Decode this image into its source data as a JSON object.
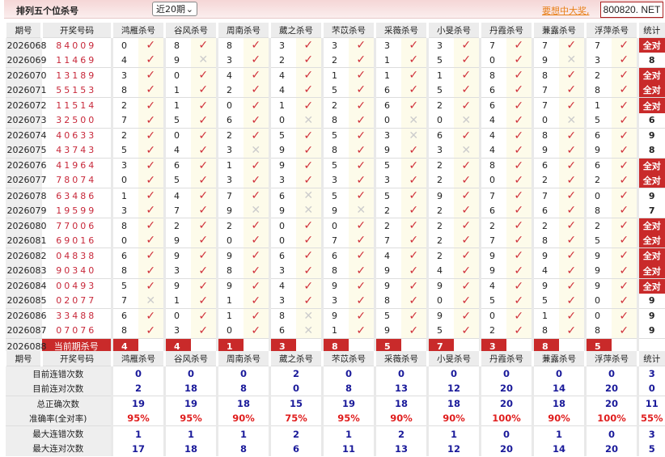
{
  "header": {
    "title": "排列五个位杀号",
    "period_select": "近20期",
    "promo_link": "要想中大奖,",
    "site": "800820. NET"
  },
  "columns": {
    "period": "期号",
    "draw": "开奖号码",
    "predictors": [
      "鸿雁杀号",
      "谷风杀号",
      "周南杀号",
      "葳之杀号",
      "芣苡杀号",
      "采薇杀号",
      "小旻杀号",
      "丹霞杀号",
      "蒹露杀号",
      "浮萍杀号"
    ],
    "stat": "统计"
  },
  "rows": [
    {
      "period": "2026068",
      "draw": "84009",
      "kills": [
        "0",
        "8",
        "8",
        "3",
        "3",
        "3",
        "3",
        "7",
        "7",
        "7"
      ],
      "hits": [
        1,
        1,
        1,
        1,
        1,
        1,
        1,
        1,
        1,
        1
      ],
      "stat": "全对"
    },
    {
      "period": "2026069",
      "draw": "11469",
      "kills": [
        "4",
        "9",
        "3",
        "2",
        "2",
        "1",
        "5",
        "0",
        "9",
        "3"
      ],
      "hits": [
        1,
        0,
        1,
        1,
        1,
        1,
        1,
        1,
        0,
        1
      ],
      "stat": "8"
    },
    {
      "period": "2026070",
      "draw": "13189",
      "kills": [
        "3",
        "0",
        "4",
        "4",
        "1",
        "1",
        "1",
        "8",
        "8",
        "2"
      ],
      "hits": [
        1,
        1,
        1,
        1,
        1,
        1,
        1,
        1,
        1,
        1
      ],
      "stat": "全对"
    },
    {
      "period": "2026071",
      "draw": "55153",
      "kills": [
        "8",
        "1",
        "2",
        "4",
        "5",
        "6",
        "5",
        "6",
        "7",
        "8"
      ],
      "hits": [
        1,
        1,
        1,
        1,
        1,
        1,
        1,
        1,
        1,
        1
      ],
      "stat": "全对"
    },
    {
      "period": "2026072",
      "draw": "11514",
      "kills": [
        "2",
        "1",
        "0",
        "1",
        "2",
        "6",
        "2",
        "6",
        "7",
        "1"
      ],
      "hits": [
        1,
        1,
        1,
        1,
        1,
        1,
        1,
        1,
        1,
        1
      ],
      "stat": "全对"
    },
    {
      "period": "2026073",
      "draw": "32500",
      "kills": [
        "7",
        "5",
        "6",
        "0",
        "8",
        "0",
        "0",
        "4",
        "0",
        "5"
      ],
      "hits": [
        1,
        1,
        1,
        0,
        1,
        0,
        0,
        1,
        0,
        1
      ],
      "stat": "6"
    },
    {
      "period": "2026074",
      "draw": "40633",
      "kills": [
        "2",
        "0",
        "2",
        "5",
        "5",
        "3",
        "6",
        "4",
        "8",
        "6"
      ],
      "hits": [
        1,
        1,
        1,
        1,
        1,
        0,
        1,
        1,
        1,
        1
      ],
      "stat": "9"
    },
    {
      "period": "2026075",
      "draw": "43743",
      "kills": [
        "5",
        "4",
        "3",
        "9",
        "8",
        "9",
        "3",
        "4",
        "9",
        "9"
      ],
      "hits": [
        1,
        1,
        0,
        1,
        1,
        1,
        0,
        1,
        1,
        1
      ],
      "stat": "8"
    },
    {
      "period": "2026076",
      "draw": "41964",
      "kills": [
        "3",
        "6",
        "1",
        "9",
        "5",
        "5",
        "2",
        "8",
        "6",
        "6"
      ],
      "hits": [
        1,
        1,
        1,
        1,
        1,
        1,
        1,
        1,
        1,
        1
      ],
      "stat": "全对"
    },
    {
      "period": "2026077",
      "draw": "78074",
      "kills": [
        "0",
        "5",
        "3",
        "3",
        "3",
        "3",
        "2",
        "0",
        "2",
        "2"
      ],
      "hits": [
        1,
        1,
        1,
        1,
        1,
        1,
        1,
        1,
        1,
        1
      ],
      "stat": "全对"
    },
    {
      "period": "2026078",
      "draw": "63486",
      "kills": [
        "1",
        "4",
        "7",
        "6",
        "5",
        "5",
        "9",
        "7",
        "7",
        "0"
      ],
      "hits": [
        1,
        1,
        1,
        0,
        1,
        1,
        1,
        1,
        1,
        1
      ],
      "stat": "9"
    },
    {
      "period": "2026079",
      "draw": "19599",
      "kills": [
        "3",
        "7",
        "9",
        "9",
        "9",
        "2",
        "2",
        "6",
        "6",
        "8"
      ],
      "hits": [
        1,
        1,
        0,
        0,
        0,
        1,
        1,
        1,
        1,
        1
      ],
      "stat": "7"
    },
    {
      "period": "2026080",
      "draw": "77006",
      "kills": [
        "8",
        "2",
        "2",
        "0",
        "0",
        "2",
        "2",
        "2",
        "2",
        "2"
      ],
      "hits": [
        1,
        1,
        1,
        1,
        1,
        1,
        1,
        1,
        1,
        1
      ],
      "stat": "全对"
    },
    {
      "period": "2026081",
      "draw": "69016",
      "kills": [
        "0",
        "9",
        "0",
        "0",
        "7",
        "7",
        "2",
        "7",
        "8",
        "5"
      ],
      "hits": [
        1,
        1,
        1,
        1,
        1,
        1,
        1,
        1,
        1,
        1
      ],
      "stat": "全对"
    },
    {
      "period": "2026082",
      "draw": "04838",
      "kills": [
        "6",
        "9",
        "9",
        "6",
        "6",
        "4",
        "2",
        "9",
        "9",
        "9"
      ],
      "hits": [
        1,
        1,
        1,
        1,
        1,
        1,
        1,
        1,
        1,
        1
      ],
      "stat": "全对"
    },
    {
      "period": "2026083",
      "draw": "90340",
      "kills": [
        "8",
        "3",
        "8",
        "3",
        "8",
        "9",
        "4",
        "9",
        "4",
        "9"
      ],
      "hits": [
        1,
        1,
        1,
        1,
        1,
        1,
        1,
        1,
        1,
        1
      ],
      "stat": "全对"
    },
    {
      "period": "2026084",
      "draw": "00493",
      "kills": [
        "5",
        "9",
        "9",
        "4",
        "9",
        "9",
        "9",
        "4",
        "9",
        "9"
      ],
      "hits": [
        1,
        1,
        1,
        1,
        1,
        1,
        1,
        1,
        1,
        1
      ],
      "stat": "全对"
    },
    {
      "period": "2026085",
      "draw": "02077",
      "kills": [
        "7",
        "1",
        "1",
        "3",
        "3",
        "8",
        "0",
        "5",
        "5",
        "0"
      ],
      "hits": [
        0,
        1,
        1,
        1,
        1,
        1,
        1,
        1,
        1,
        1
      ],
      "stat": "9"
    },
    {
      "period": "2026086",
      "draw": "33488",
      "kills": [
        "6",
        "0",
        "1",
        "8",
        "9",
        "5",
        "9",
        "0",
        "1",
        "0"
      ],
      "hits": [
        1,
        1,
        1,
        0,
        1,
        1,
        1,
        1,
        1,
        1
      ],
      "stat": "9"
    },
    {
      "period": "2026087",
      "draw": "07076",
      "kills": [
        "8",
        "3",
        "0",
        "6",
        "1",
        "9",
        "5",
        "2",
        "8",
        "8"
      ],
      "hits": [
        1,
        1,
        1,
        0,
        1,
        1,
        1,
        1,
        1,
        1
      ],
      "stat": "9"
    }
  ],
  "current": {
    "period": "2026088",
    "label": "当前期杀号",
    "kills": [
      "4",
      "4",
      "1",
      "3",
      "8",
      "5",
      "7",
      "3",
      "8",
      "5"
    ]
  },
  "icons": {
    "hit": "check-icon",
    "miss": "cross-icon"
  },
  "colors": {
    "accent": "#c92a2a",
    "hit": "#d0303a",
    "stat_value": "#1a1a9a",
    "rate": "#e01e1e"
  },
  "stats": [
    {
      "label": "目前连错次数",
      "values": [
        "0",
        "0",
        "0",
        "2",
        "0",
        "0",
        "0",
        "0",
        "0",
        "0"
      ],
      "total": "3"
    },
    {
      "label": "目前连对次数",
      "values": [
        "2",
        "18",
        "8",
        "0",
        "8",
        "13",
        "12",
        "20",
        "14",
        "20"
      ],
      "total": "0"
    },
    {
      "label": "总正确次数",
      "values": [
        "19",
        "19",
        "18",
        "15",
        "19",
        "18",
        "18",
        "20",
        "18",
        "20"
      ],
      "total": "11"
    },
    {
      "label": "准确率(全对率)",
      "values": [
        "95%",
        "95%",
        "90%",
        "75%",
        "95%",
        "90%",
        "90%",
        "100%",
        "90%",
        "100%"
      ],
      "total": "55%"
    },
    {
      "label": "最大连错次数",
      "values": [
        "1",
        "1",
        "1",
        "2",
        "1",
        "2",
        "1",
        "0",
        "1",
        "0"
      ],
      "total": "3"
    },
    {
      "label": "最大连对次数",
      "values": [
        "17",
        "18",
        "8",
        "6",
        "11",
        "13",
        "12",
        "20",
        "14",
        "20"
      ],
      "total": "5"
    }
  ]
}
